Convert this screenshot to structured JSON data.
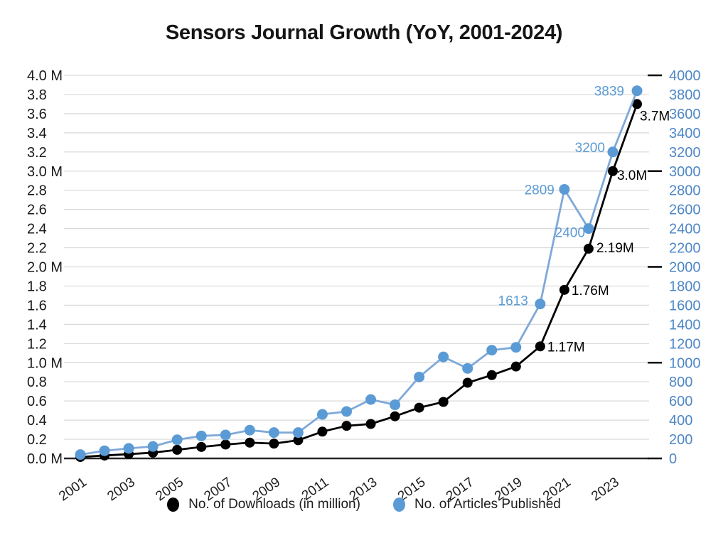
{
  "title": "Sensors Journal Growth (YoY, 2001-2024)",
  "legend": {
    "items": [
      {
        "label": "No. of Downloads (in million)",
        "color": "#000000"
      },
      {
        "label": "No. of Articles Published",
        "color": "#5B9BD5"
      }
    ]
  },
  "colors": {
    "grid": "#D9D9D9",
    "baseline": "#262626",
    "axis_dash": "#000000",
    "left_axis_text": "#1a1a1a",
    "right_axis_text": "#4E87C6",
    "x_axis_text": "#1f1f1f"
  },
  "chart_data": {
    "type": "line",
    "title": "Sensors Journal Growth (YoY, 2001-2024)",
    "x": [
      2001,
      2002,
      2003,
      2004,
      2005,
      2006,
      2007,
      2008,
      2009,
      2010,
      2011,
      2012,
      2013,
      2014,
      2015,
      2016,
      2017,
      2018,
      2019,
      2020,
      2021,
      2022,
      2023,
      2024
    ],
    "x_tick_labels": [
      "2001",
      "2003",
      "2005",
      "2007",
      "2009",
      "2011",
      "2013",
      "2015",
      "2017",
      "2019",
      "2021",
      "2023"
    ],
    "grid": true,
    "legend_position": "bottom",
    "left_axis": {
      "max": 4.0,
      "tick_labels": [
        "4.0 M",
        "3.8",
        "3.6",
        "3.4",
        "3.2",
        "3.0 M",
        "2.8",
        "2.6",
        "2.4",
        "2.2",
        "2.0 M",
        "1.8",
        "1.6",
        "1.4",
        "1.2",
        "1.0 M",
        "0.8",
        "0.6",
        "0.4",
        "0.2",
        "0.0 M"
      ]
    },
    "right_axis": {
      "max": 4000,
      "tick_labels": [
        "4000",
        "3800",
        "3600",
        "3400",
        "3200",
        "3000",
        "2800",
        "2600",
        "2400",
        "2200",
        "2000",
        "1800",
        "1600",
        "1400",
        "1200",
        "1000",
        "800",
        "600",
        "400",
        "200",
        "0"
      ]
    },
    "series": [
      {
        "name": "No. of Downloads (in million)",
        "axis": "left",
        "color": "#000000",
        "line_color": "#000000",
        "label_color": "#000000",
        "values": [
          0.015,
          0.03,
          0.045,
          0.06,
          0.09,
          0.12,
          0.145,
          0.165,
          0.155,
          0.19,
          0.28,
          0.34,
          0.36,
          0.44,
          0.53,
          0.59,
          0.79,
          0.87,
          0.96,
          1.17,
          1.76,
          2.19,
          3.0,
          3.7
        ],
        "point_labels": [
          {
            "year": 2020,
            "text": "1.17M",
            "dx": 10,
            "dy": 7
          },
          {
            "year": 2021,
            "text": "1.76M",
            "dx": 10,
            "dy": 7
          },
          {
            "year": 2022,
            "text": "2.19M",
            "dx": 11,
            "dy": 5
          },
          {
            "year": 2023,
            "text": "3.0M",
            "dx": 6,
            "dy": 12
          },
          {
            "year": 2024,
            "text": "3.7M",
            "dx": 4,
            "dy": 23
          }
        ]
      },
      {
        "name": "No. of Articles Published",
        "axis": "right",
        "color": "#5B9BD5",
        "line_color": "#7FA8D8",
        "label_color": "#5B9BD5",
        "values": [
          40,
          80,
          105,
          125,
          195,
          235,
          245,
          295,
          270,
          270,
          460,
          490,
          615,
          560,
          850,
          1060,
          940,
          1130,
          1160,
          1613,
          2809,
          2400,
          3200,
          3839
        ],
        "point_labels": [
          {
            "year": 2020,
            "text": "1613",
            "dx": -17,
            "dy": 2
          },
          {
            "year": 2021,
            "text": "2809",
            "dx": -14,
            "dy": 7
          },
          {
            "year": 2022,
            "text": "2400",
            "dx": -5,
            "dy": 12
          },
          {
            "year": 2023,
            "text": "3200",
            "dx": -11,
            "dy": 0
          },
          {
            "year": 2024,
            "text": "3839",
            "dx": -18,
            "dy": 7
          }
        ]
      }
    ]
  }
}
